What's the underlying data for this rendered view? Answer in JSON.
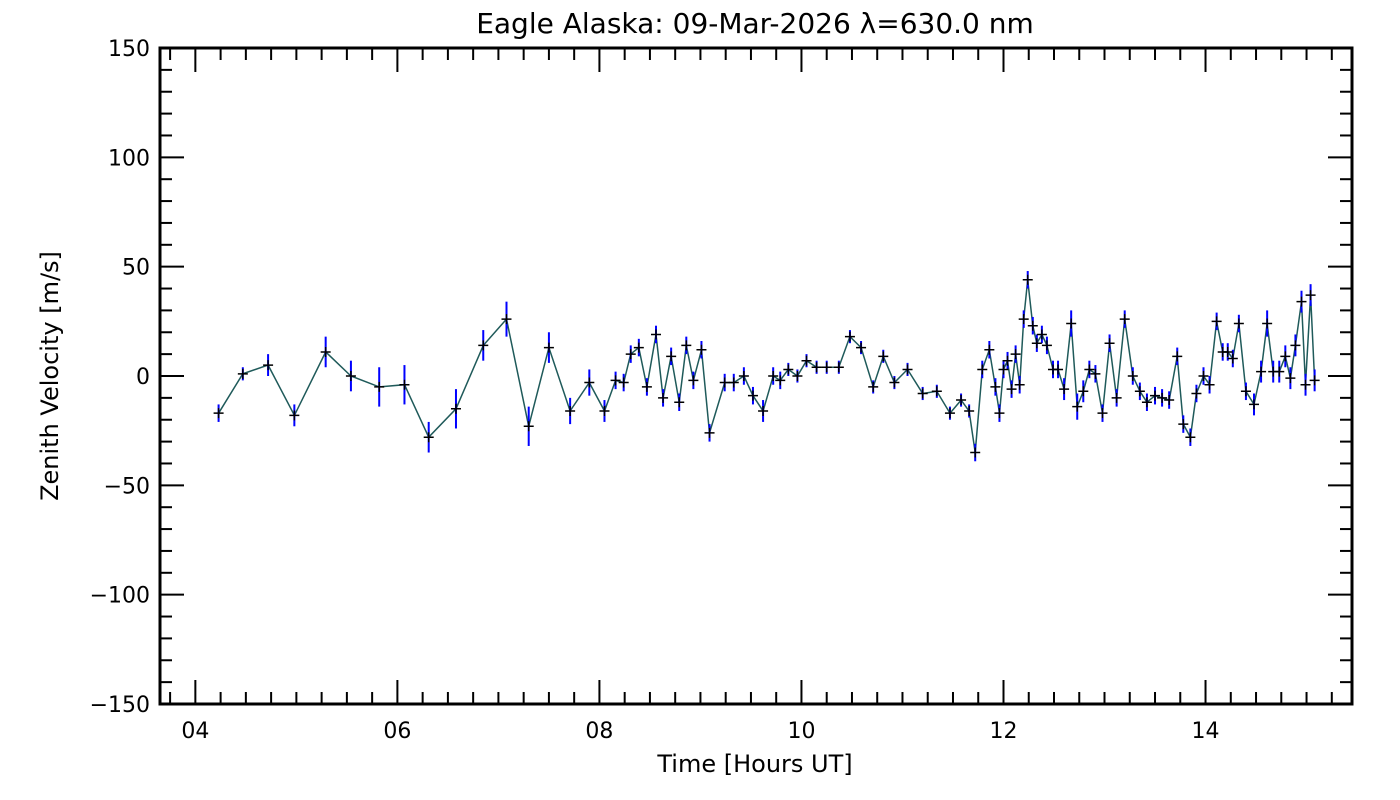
{
  "chart_data": {
    "type": "scatter",
    "title": "Eagle Alaska: 09-Mar-2026 λ=630.0 nm",
    "xlabel": "Time [Hours UT]",
    "ylabel": "Zenith Velocity [m/s]",
    "xlim": [
      3.65,
      15.45
    ],
    "ylim": [
      -150,
      150
    ],
    "x_tick_labels": [
      {
        "value": 4,
        "label": "04"
      },
      {
        "value": 6,
        "label": "06"
      },
      {
        "value": 8,
        "label": "08"
      },
      {
        "value": 10,
        "label": "10"
      },
      {
        "value": 12,
        "label": "12"
      },
      {
        "value": 14,
        "label": "14"
      }
    ],
    "y_tick_labels": [
      {
        "value": 150,
        "label": "150"
      },
      {
        "value": 100,
        "label": "100"
      },
      {
        "value": 50,
        "label": "50"
      },
      {
        "value": 0,
        "label": "0"
      },
      {
        "value": -50,
        "label": "−50"
      },
      {
        "value": -100,
        "label": "−100"
      },
      {
        "value": -150,
        "label": "−150"
      }
    ],
    "grid": false,
    "colors": {
      "line": "#1f5a5a",
      "errorbar": "#0000ff",
      "marker": "#000000"
    },
    "series": [
      {
        "points": [
          {
            "x": 4.23,
            "y": -17,
            "err": 4
          },
          {
            "x": 4.47,
            "y": 1,
            "err": 3
          },
          {
            "x": 4.72,
            "y": 5,
            "err": 5
          },
          {
            "x": 4.98,
            "y": -18,
            "err": 5
          },
          {
            "x": 5.29,
            "y": 11,
            "err": 7
          },
          {
            "x": 5.54,
            "y": 0,
            "err": 7
          },
          {
            "x": 5.82,
            "y": -5,
            "err": 9
          },
          {
            "x": 6.07,
            "y": -4,
            "err": 9
          },
          {
            "x": 6.31,
            "y": -28,
            "err": 7
          },
          {
            "x": 6.58,
            "y": -15,
            "err": 9
          },
          {
            "x": 6.85,
            "y": 14,
            "err": 7
          },
          {
            "x": 7.08,
            "y": 26,
            "err": 8
          },
          {
            "x": 7.3,
            "y": -23,
            "err": 9
          },
          {
            "x": 7.5,
            "y": 13,
            "err": 7
          },
          {
            "x": 7.71,
            "y": -16,
            "err": 6
          },
          {
            "x": 7.9,
            "y": -3,
            "err": 6
          },
          {
            "x": 8.05,
            "y": -16,
            "err": 5
          },
          {
            "x": 8.16,
            "y": -2,
            "err": 4
          },
          {
            "x": 8.24,
            "y": -3,
            "err": 4
          },
          {
            "x": 8.31,
            "y": 10,
            "err": 4
          },
          {
            "x": 8.39,
            "y": 13,
            "err": 4
          },
          {
            "x": 8.47,
            "y": -5,
            "err": 4
          },
          {
            "x": 8.56,
            "y": 19,
            "err": 4
          },
          {
            "x": 8.63,
            "y": -10,
            "err": 4
          },
          {
            "x": 8.71,
            "y": 9,
            "err": 4
          },
          {
            "x": 8.79,
            "y": -12,
            "err": 4
          },
          {
            "x": 8.86,
            "y": 14,
            "err": 4
          },
          {
            "x": 8.93,
            "y": -2,
            "err": 4
          },
          {
            "x": 9.01,
            "y": 12,
            "err": 4
          },
          {
            "x": 9.09,
            "y": -26,
            "err": 4
          },
          {
            "x": 9.24,
            "y": -3,
            "err": 4
          },
          {
            "x": 9.33,
            "y": -3,
            "err": 4
          },
          {
            "x": 9.43,
            "y": 0,
            "err": 4
          },
          {
            "x": 9.52,
            "y": -9,
            "err": 4
          },
          {
            "x": 9.62,
            "y": -16,
            "err": 5
          },
          {
            "x": 9.72,
            "y": 0,
            "err": 4
          },
          {
            "x": 9.79,
            "y": -2,
            "err": 4
          },
          {
            "x": 9.87,
            "y": 3,
            "err": 3
          },
          {
            "x": 9.96,
            "y": 0,
            "err": 3
          },
          {
            "x": 10.05,
            "y": 7,
            "err": 3
          },
          {
            "x": 10.15,
            "y": 4,
            "err": 3
          },
          {
            "x": 10.25,
            "y": 4,
            "err": 3
          },
          {
            "x": 10.37,
            "y": 4,
            "err": 3
          },
          {
            "x": 10.48,
            "y": 18,
            "err": 3
          },
          {
            "x": 10.59,
            "y": 13,
            "err": 3
          },
          {
            "x": 10.71,
            "y": -5,
            "err": 3
          },
          {
            "x": 10.81,
            "y": 9,
            "err": 3
          },
          {
            "x": 10.92,
            "y": -3,
            "err": 3
          },
          {
            "x": 11.05,
            "y": 3,
            "err": 3
          },
          {
            "x": 11.2,
            "y": -8,
            "err": 3
          },
          {
            "x": 11.34,
            "y": -7,
            "err": 3
          },
          {
            "x": 11.47,
            "y": -17,
            "err": 3
          },
          {
            "x": 11.58,
            "y": -11,
            "err": 3
          },
          {
            "x": 11.66,
            "y": -16,
            "err": 3
          },
          {
            "x": 11.72,
            "y": -35,
            "err": 4
          },
          {
            "x": 11.79,
            "y": 3,
            "err": 4
          },
          {
            "x": 11.86,
            "y": 12,
            "err": 4
          },
          {
            "x": 11.92,
            "y": -5,
            "err": 4
          },
          {
            "x": 11.96,
            "y": -17,
            "err": 4
          },
          {
            "x": 12.0,
            "y": 3,
            "err": 4
          },
          {
            "x": 12.04,
            "y": 7,
            "err": 4
          },
          {
            "x": 12.08,
            "y": -6,
            "err": 4
          },
          {
            "x": 12.12,
            "y": 10,
            "err": 4
          },
          {
            "x": 12.16,
            "y": -4,
            "err": 4
          },
          {
            "x": 12.2,
            "y": 26,
            "err": 4
          },
          {
            "x": 12.24,
            "y": 44,
            "err": 4
          },
          {
            "x": 12.29,
            "y": 23,
            "err": 4
          },
          {
            "x": 12.33,
            "y": 15,
            "err": 4
          },
          {
            "x": 12.38,
            "y": 19,
            "err": 4
          },
          {
            "x": 12.43,
            "y": 14,
            "err": 4
          },
          {
            "x": 12.49,
            "y": 3,
            "err": 4
          },
          {
            "x": 12.54,
            "y": 3,
            "err": 4
          },
          {
            "x": 12.6,
            "y": -6,
            "err": 5
          },
          {
            "x": 12.67,
            "y": 24,
            "err": 6
          },
          {
            "x": 12.73,
            "y": -14,
            "err": 6
          },
          {
            "x": 12.79,
            "y": -7,
            "err": 5
          },
          {
            "x": 12.85,
            "y": 3,
            "err": 4
          },
          {
            "x": 12.91,
            "y": 1,
            "err": 4
          },
          {
            "x": 12.98,
            "y": -17,
            "err": 4
          },
          {
            "x": 13.05,
            "y": 15,
            "err": 4
          },
          {
            "x": 13.12,
            "y": -10,
            "err": 4
          },
          {
            "x": 13.2,
            "y": 26,
            "err": 4
          },
          {
            "x": 13.28,
            "y": 0,
            "err": 4
          },
          {
            "x": 13.35,
            "y": -7,
            "err": 4
          },
          {
            "x": 13.42,
            "y": -12,
            "err": 4
          },
          {
            "x": 13.5,
            "y": -9,
            "err": 4
          },
          {
            "x": 13.57,
            "y": -10,
            "err": 4
          },
          {
            "x": 13.64,
            "y": -11,
            "err": 4
          },
          {
            "x": 13.72,
            "y": 9,
            "err": 4
          },
          {
            "x": 13.78,
            "y": -22,
            "err": 4
          },
          {
            "x": 13.85,
            "y": -28,
            "err": 4
          },
          {
            "x": 13.91,
            "y": -8,
            "err": 4
          },
          {
            "x": 13.98,
            "y": 0,
            "err": 4
          },
          {
            "x": 14.04,
            "y": -4,
            "err": 4
          },
          {
            "x": 14.11,
            "y": 25,
            "err": 4
          },
          {
            "x": 14.17,
            "y": 11,
            "err": 4
          },
          {
            "x": 14.22,
            "y": 11,
            "err": 4
          },
          {
            "x": 14.27,
            "y": 8,
            "err": 4
          },
          {
            "x": 14.33,
            "y": 24,
            "err": 4
          },
          {
            "x": 14.4,
            "y": -7,
            "err": 4
          },
          {
            "x": 14.48,
            "y": -13,
            "err": 5
          },
          {
            "x": 14.55,
            "y": 2,
            "err": 5
          },
          {
            "x": 14.61,
            "y": 24,
            "err": 6
          },
          {
            "x": 14.67,
            "y": 2,
            "err": 5
          },
          {
            "x": 14.73,
            "y": 2,
            "err": 5
          },
          {
            "x": 14.79,
            "y": 9,
            "err": 5
          },
          {
            "x": 14.84,
            "y": -1,
            "err": 5
          },
          {
            "x": 14.89,
            "y": 14,
            "err": 5
          },
          {
            "x": 14.95,
            "y": 34,
            "err": 5
          },
          {
            "x": 14.99,
            "y": -4,
            "err": 5
          },
          {
            "x": 15.04,
            "y": 37,
            "err": 5
          },
          {
            "x": 15.08,
            "y": -2,
            "err": 5
          }
        ]
      }
    ]
  }
}
